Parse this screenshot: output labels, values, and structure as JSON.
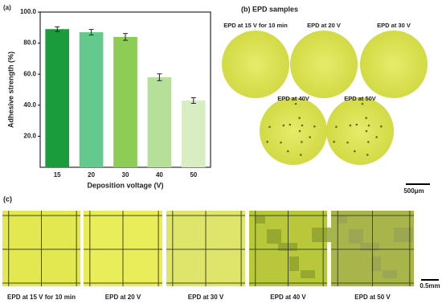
{
  "chart_data": {
    "type": "bar",
    "panel_label": "(a)",
    "xlabel": "Deposition voltage (V)",
    "ylabel": "Adhesive strength (%)",
    "categories": [
      "15",
      "20",
      "30",
      "40",
      "50"
    ],
    "values": [
      89,
      87,
      84,
      58,
      43
    ],
    "errors": [
      1.5,
      1.8,
      2.2,
      2.2,
      1.8
    ],
    "colors": [
      "#1b9c3c",
      "#63c98c",
      "#8dcc55",
      "#b6e099",
      "#d8eec2"
    ],
    "ylim": [
      0,
      100
    ],
    "yticks": [
      {
        "value": 20,
        "label": "20.0"
      },
      {
        "value": 40,
        "label": "40.0"
      },
      {
        "value": 60,
        "label": "60.0"
      },
      {
        "value": 80,
        "label": "80.0"
      },
      {
        "value": 100,
        "label": "100.0"
      }
    ]
  },
  "samples": {
    "title": "(b) EPD samples",
    "labels": [
      "EPD at 15 V for 10 min",
      "EPD at 20 V",
      "EPD at 30 V",
      "EPD at 40V",
      "EPD at 50V"
    ],
    "scale_bar": "500μm"
  },
  "strips": {
    "panel_label": "(c)",
    "labels": [
      "EPD at 15 V for 10 min",
      "EPD at 20 V",
      "EPD at 30 V",
      "EPD at 40 V",
      "EPD at 50 V"
    ],
    "scale_bar": "0.5mm"
  }
}
